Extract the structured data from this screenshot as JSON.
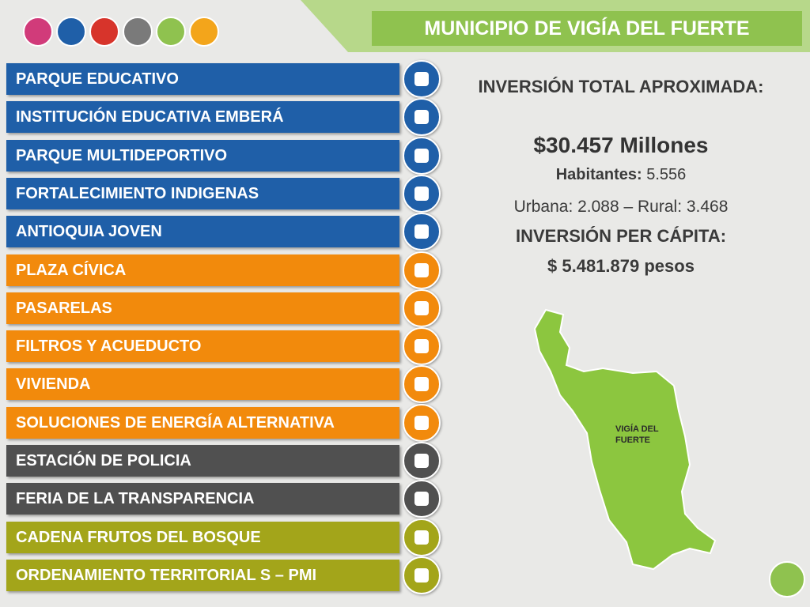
{
  "header": {
    "title": "MUNICIPIO DE VIGÍA DEL FUERTE"
  },
  "programs": [
    {
      "label": "PARQUE EDUCATIVO",
      "color": "#1f5fa8"
    },
    {
      "label": "INSTITUCIÓN EDUCATIVA EMBERÁ",
      "color": "#1f5fa8"
    },
    {
      "label": "PARQUE MULTIDEPORTIVO",
      "color": "#1f5fa8"
    },
    {
      "label": "FORTALECIMIENTO INDIGENAS",
      "color": "#1f5fa8"
    },
    {
      "label": "ANTIOQUIA JOVEN",
      "color": "#1f5fa8"
    },
    {
      "label": "PLAZA CÍVICA",
      "color": "#f28a0c"
    },
    {
      "label": "PASARELAS",
      "color": "#f28a0c"
    },
    {
      "label": "FILTROS Y ACUEDUCTO",
      "color": "#f28a0c"
    },
    {
      "label": "VIVIENDA",
      "color": "#f28a0c"
    },
    {
      "label": "SOLUCIONES DE ENERGÍA ALTERNATIVA",
      "color": "#f28a0c"
    },
    {
      "label": "ESTACIÓN DE POLICIA",
      "color": "#505050"
    },
    {
      "label": "FERIA DE LA TRANSPARENCIA",
      "color": "#505050"
    },
    {
      "label": "CADENA  FRUTOS DEL BOSQUE",
      "color": "#a3a51a"
    },
    {
      "label": "ORDENAMIENTO TERRITORIAL S – PMI",
      "color": "#a3a51a"
    }
  ],
  "info": {
    "investment_title": "INVERSIÓN TOTAL APROXIMADA:",
    "investment_amount": "$30.457",
    "investment_unit": "Millones",
    "population_label": "Habitantes:",
    "population_value": "5.556",
    "urban_rural": "Urbana: 2.088 – Rural: 3.468",
    "per_capita_title": "INVERSIÓN PER CÁPITA:",
    "per_capita_value": "$ 5.481.879 pesos"
  },
  "map": {
    "label": "VIGÍA DEL FUERTE"
  }
}
